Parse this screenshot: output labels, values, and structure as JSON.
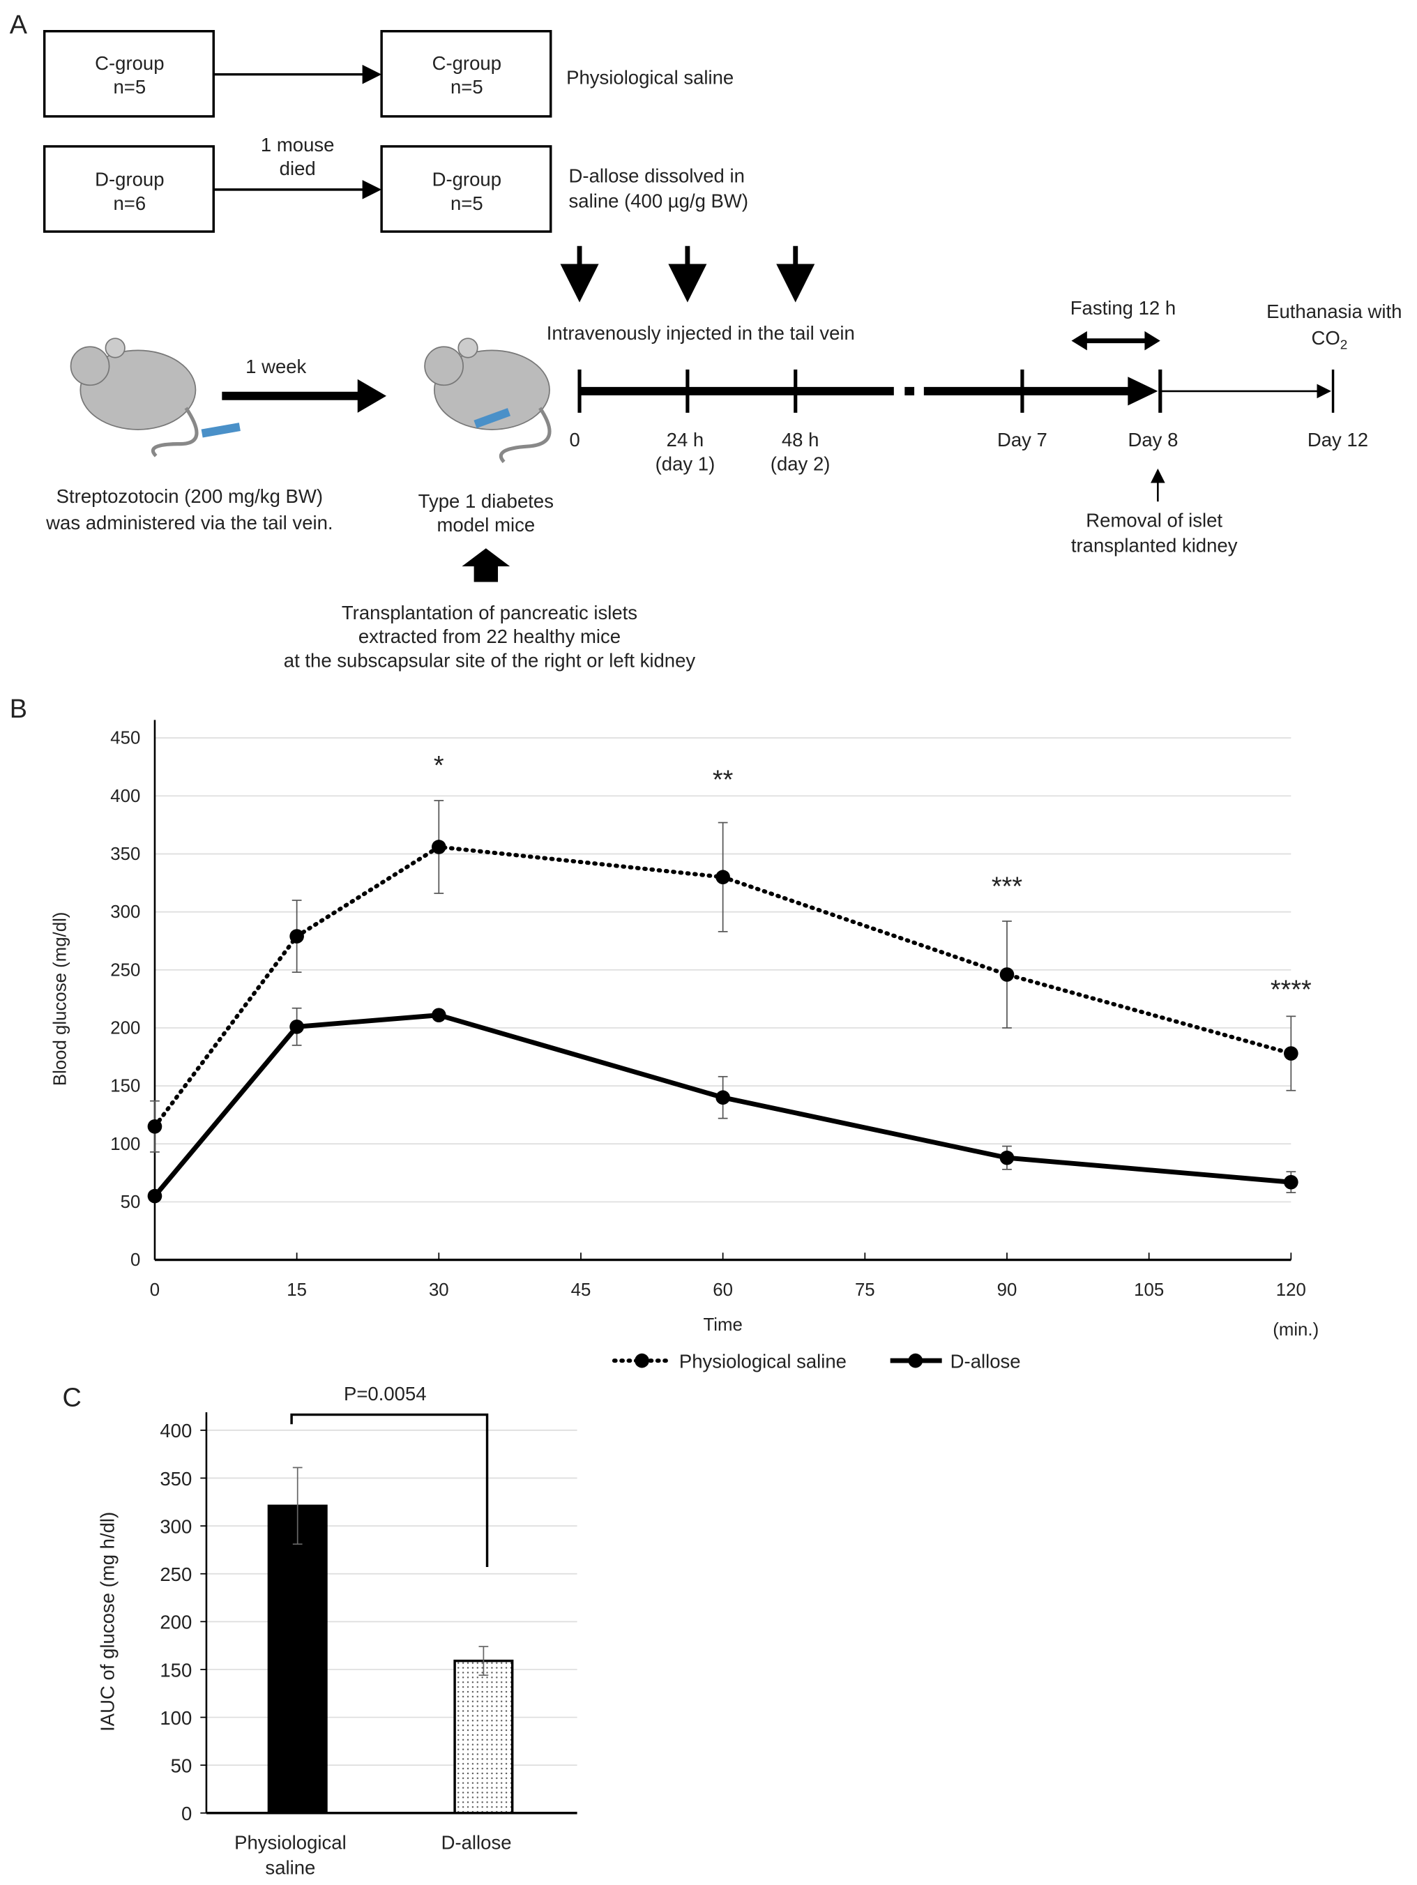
{
  "panel_a": {
    "label": "A",
    "c_group_before": [
      "C-group",
      "n=5"
    ],
    "c_group_after": [
      "C-group",
      "n=5"
    ],
    "c_treatment": "Physiological saline",
    "d_group_before": [
      "D-group",
      "n=6"
    ],
    "d_group_after": [
      "D-group",
      "n=5"
    ],
    "d_note": [
      "1 mouse",
      "died"
    ],
    "d_treatment": [
      "D-allose dissolved in",
      "saline (400 µg/g BW)"
    ],
    "one_week": "1 week",
    "injection_note": "Intravenously injected in the tail vein",
    "fasting": "Fasting 12 h",
    "euthanasia": [
      "Euthanasia with",
      "CO",
      "2"
    ],
    "timeline_ticks": [
      [
        "0",
        ""
      ],
      [
        "24 h",
        "(day 1)"
      ],
      [
        "48 h",
        "(day 2)"
      ],
      [
        "Day 7",
        ""
      ],
      [
        "Day 8",
        ""
      ],
      [
        "Day 12",
        ""
      ]
    ],
    "streptozotocin": [
      "Streptozotocin (200 mg/kg BW)",
      "was administered via the tail vein."
    ],
    "model_mice": [
      "Type 1 diabetes",
      "model mice"
    ],
    "removal": [
      "Removal of islet",
      "transplanted kidney"
    ],
    "transplantation": [
      "Transplantation of pancreatic islets",
      "extracted from 22 healthy mice",
      "at the subscapsular site of the right or left kidney"
    ]
  },
  "chart_data": [
    {
      "panel": "B",
      "type": "line",
      "xlabel": "Time",
      "xunit": "(min.)",
      "ylabel": "Blood glucose (mg/dl)",
      "x": [
        0,
        15,
        30,
        60,
        90,
        120
      ],
      "xticks": [
        0,
        15,
        30,
        45,
        60,
        75,
        90,
        105,
        120
      ],
      "yticks": [
        0,
        50,
        100,
        150,
        200,
        250,
        300,
        350,
        400,
        450
      ],
      "xlim": [
        0,
        120
      ],
      "ylim": [
        0,
        450
      ],
      "grid": true,
      "legend_position": "bottom",
      "series": [
        {
          "name": "Physiological saline",
          "style": "dotted",
          "values": [
            115,
            279,
            356,
            330,
            246,
            178
          ],
          "errors": [
            22,
            31,
            40,
            47,
            46,
            32
          ]
        },
        {
          "name": "D-allose",
          "style": "solid",
          "values": [
            55,
            201,
            211,
            140,
            88,
            67
          ],
          "errors": [
            0,
            16,
            3,
            18,
            10,
            9
          ]
        }
      ],
      "annotations": [
        {
          "x": 30,
          "text": "*"
        },
        {
          "x": 60,
          "text": "**"
        },
        {
          "x": 90,
          "text": "***"
        },
        {
          "x": 120,
          "text": "****"
        }
      ]
    },
    {
      "panel": "C",
      "type": "bar",
      "ylabel": "IAUC of glucose (mg h/dl)",
      "categories": [
        [
          "Physiological",
          "saline"
        ],
        [
          "D-allose"
        ]
      ],
      "values": [
        321,
        159
      ],
      "errors": [
        40,
        15
      ],
      "fills": [
        "solid-black",
        "dotted"
      ],
      "yticks": [
        0,
        50,
        100,
        150,
        200,
        250,
        300,
        350,
        400
      ],
      "ylim": [
        0,
        400
      ],
      "grid": true,
      "significance": "P=0.0054"
    }
  ],
  "colors": {
    "ink": "#000000",
    "grid": "#dddddd",
    "text": "#222222",
    "syringe": "#4a90c8"
  }
}
